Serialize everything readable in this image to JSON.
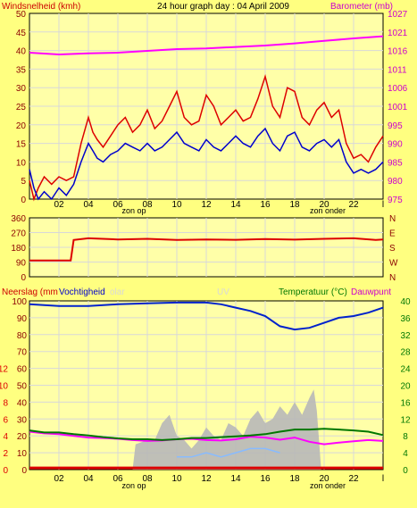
{
  "title": "24 hour graph day : 04 April 2009",
  "colors": {
    "background": "#ffff80",
    "plot_bg": "#ffffa8",
    "grid": "#d8d8d8",
    "wind_gust": "#dd0000",
    "wind_avg": "#0000cc",
    "barometer": "#ff00ff",
    "direction": "#dd0000",
    "humidity": "#0022cc",
    "temperature": "#007700",
    "dewpoint": "#ff00ff",
    "rain": "#dd0000",
    "solar": "#b8b8b8",
    "uv": "#88bbff",
    "dark_red": "#8b0000",
    "green_axis": "#007700",
    "magenta_axis": "#cc00cc",
    "solar_label": "#d8d8d8"
  },
  "x_axis": {
    "ticks": [
      "02",
      "04",
      "06",
      "08",
      "10",
      "12",
      "14",
      "16",
      "18",
      "20",
      "22",
      "l"
    ],
    "sunrise_label": "zon op",
    "sunset_label": "zon onder"
  },
  "panels": {
    "wind": {
      "left_label": "Windsnelheid (kmh)",
      "right_label": "Barometer (mb)",
      "left_ticks": [
        "0",
        "5",
        "10",
        "15",
        "20",
        "25",
        "30",
        "35",
        "40",
        "45",
        "50"
      ],
      "right_ticks": [
        "975",
        "980",
        "985",
        "990",
        "995",
        "1001",
        "1006",
        "1011",
        "1016",
        "1021",
        "1027"
      ]
    },
    "direction": {
      "left_ticks": [
        "0",
        "90",
        "180",
        "270",
        "360"
      ],
      "right_ticks": [
        "N",
        "W",
        "S",
        "E",
        "N"
      ]
    },
    "climate": {
      "label_rain": "Neerslag (mm",
      "label_humidity": "Vochtigheid",
      "label_solar": "olar",
      "label_uv": "UV",
      "label_temperature": "Temperatuur (°C)",
      "label_dewpoint": "Dauwpunt",
      "rain_ticks": [
        "0",
        "2",
        "4",
        "6",
        "8",
        "10",
        "12"
      ],
      "humidity_ticks": [
        "0",
        "10",
        "20",
        "30",
        "40",
        "50",
        "60",
        "70",
        "80",
        "90",
        "100"
      ],
      "right_ticks": [
        "0",
        "4",
        "8",
        "12",
        "16",
        "20",
        "24",
        "28",
        "32",
        "36",
        "40"
      ]
    }
  },
  "chart_data": [
    {
      "type": "line",
      "x_unit": "hour",
      "x_range": [
        0,
        24
      ],
      "ylim": [
        0,
        50
      ],
      "y2lim": [
        975,
        1027
      ],
      "series": [
        {
          "name": "Windsnelheid (kmh)",
          "points": [
            [
              0,
              8
            ],
            [
              0.3,
              3
            ],
            [
              0.6,
              0
            ],
            [
              1,
              2
            ],
            [
              1.5,
              0
            ],
            [
              2,
              3
            ],
            [
              2.5,
              1
            ],
            [
              3,
              4
            ],
            [
              3.5,
              10
            ],
            [
              4,
              15
            ],
            [
              4.3,
              13
            ],
            [
              4.6,
              11
            ],
            [
              5,
              10
            ],
            [
              5.5,
              12
            ],
            [
              6,
              13
            ],
            [
              6.5,
              15
            ],
            [
              7,
              14
            ],
            [
              7.5,
              13
            ],
            [
              8,
              15
            ],
            [
              8.5,
              13
            ],
            [
              9,
              14
            ],
            [
              9.5,
              16
            ],
            [
              10,
              18
            ],
            [
              10.5,
              15
            ],
            [
              11,
              14
            ],
            [
              11.5,
              13
            ],
            [
              12,
              16
            ],
            [
              12.5,
              14
            ],
            [
              13,
              13
            ],
            [
              13.5,
              15
            ],
            [
              14,
              17
            ],
            [
              14.5,
              15
            ],
            [
              15,
              14
            ],
            [
              15.5,
              17
            ],
            [
              16,
              19
            ],
            [
              16.5,
              15
            ],
            [
              17,
              13
            ],
            [
              17.5,
              17
            ],
            [
              18,
              18
            ],
            [
              18.5,
              14
            ],
            [
              19,
              13
            ],
            [
              19.5,
              15
            ],
            [
              20,
              16
            ],
            [
              20.5,
              14
            ],
            [
              21,
              16
            ],
            [
              21.5,
              10
            ],
            [
              22,
              7
            ],
            [
              22.5,
              8
            ],
            [
              23,
              7
            ],
            [
              23.5,
              8
            ],
            [
              24,
              10
            ]
          ]
        },
        {
          "name": "Gust",
          "points": [
            [
              0,
              5
            ],
            [
              0.3,
              0
            ],
            [
              0.6,
              3
            ],
            [
              1,
              6
            ],
            [
              1.5,
              4
            ],
            [
              2,
              6
            ],
            [
              2.5,
              5
            ],
            [
              3,
              6
            ],
            [
              3.5,
              15
            ],
            [
              4,
              22
            ],
            [
              4.3,
              18
            ],
            [
              4.6,
              16
            ],
            [
              5,
              14
            ],
            [
              5.5,
              17
            ],
            [
              6,
              20
            ],
            [
              6.5,
              22
            ],
            [
              7,
              18
            ],
            [
              7.5,
              20
            ],
            [
              8,
              24
            ],
            [
              8.5,
              19
            ],
            [
              9,
              21
            ],
            [
              9.5,
              25
            ],
            [
              10,
              29
            ],
            [
              10.5,
              22
            ],
            [
              11,
              20
            ],
            [
              11.5,
              21
            ],
            [
              12,
              28
            ],
            [
              12.5,
              25
            ],
            [
              13,
              20
            ],
            [
              13.5,
              22
            ],
            [
              14,
              24
            ],
            [
              14.5,
              21
            ],
            [
              15,
              22
            ],
            [
              15.5,
              27
            ],
            [
              16,
              33
            ],
            [
              16.5,
              25
            ],
            [
              17,
              22
            ],
            [
              17.5,
              30
            ],
            [
              18,
              29
            ],
            [
              18.5,
              22
            ],
            [
              19,
              20
            ],
            [
              19.5,
              24
            ],
            [
              20,
              26
            ],
            [
              20.5,
              22
            ],
            [
              21,
              24
            ],
            [
              21.5,
              15
            ],
            [
              22,
              11
            ],
            [
              22.5,
              12
            ],
            [
              23,
              10
            ],
            [
              23.5,
              14
            ],
            [
              24,
              17
            ]
          ]
        },
        {
          "name": "Barometer (mb)",
          "axis": "right",
          "points": [
            [
              0,
              1016
            ],
            [
              2,
              1015.5
            ],
            [
              4,
              1015.8
            ],
            [
              6,
              1016
            ],
            [
              8,
              1016.5
            ],
            [
              10,
              1017
            ],
            [
              12,
              1017.2
            ],
            [
              14,
              1017.6
            ],
            [
              16,
              1018
            ],
            [
              18,
              1018.6
            ],
            [
              20,
              1019.3
            ],
            [
              22,
              1020
            ],
            [
              24,
              1020.6
            ]
          ]
        }
      ]
    },
    {
      "type": "line",
      "x_unit": "hour",
      "x_range": [
        0,
        24
      ],
      "ylim": [
        0,
        360
      ],
      "series": [
        {
          "name": "Wind direction",
          "points": [
            [
              0,
              100
            ],
            [
              2.8,
              100
            ],
            [
              3,
              225
            ],
            [
              4,
              235
            ],
            [
              6,
              228
            ],
            [
              8,
              232
            ],
            [
              10,
              225
            ],
            [
              12,
              228
            ],
            [
              14,
              226
            ],
            [
              16,
              230
            ],
            [
              18,
              227
            ],
            [
              20,
              232
            ],
            [
              22,
              235
            ],
            [
              23.5,
              225
            ],
            [
              24,
              228
            ]
          ]
        }
      ]
    },
    {
      "type": "line",
      "x_unit": "hour",
      "x_range": [
        0,
        24
      ],
      "ylim": [
        0,
        100
      ],
      "y2lim": [
        0,
        40
      ],
      "series": [
        {
          "name": "Vochtigheid",
          "points": [
            [
              0,
              98
            ],
            [
              2,
              97
            ],
            [
              4,
              97
            ],
            [
              6,
              98
            ],
            [
              8,
              98.5
            ],
            [
              10,
              99
            ],
            [
              12,
              99
            ],
            [
              13,
              98
            ],
            [
              14,
              96
            ],
            [
              15,
              94
            ],
            [
              16,
              91
            ],
            [
              17,
              85
            ],
            [
              18,
              83
            ],
            [
              19,
              84
            ],
            [
              20,
              87
            ],
            [
              21,
              90
            ],
            [
              22,
              91
            ],
            [
              23,
              93
            ],
            [
              24,
              96
            ]
          ]
        },
        {
          "name": "Temperatuur (°C)",
          "axis": "right",
          "points": [
            [
              0,
              9.3
            ],
            [
              1,
              8.8
            ],
            [
              2,
              8.8
            ],
            [
              3,
              8.4
            ],
            [
              4,
              8.1
            ],
            [
              5,
              7.7
            ],
            [
              6,
              7.4
            ],
            [
              7,
              7.2
            ],
            [
              8,
              7.2
            ],
            [
              9,
              7.0
            ],
            [
              10,
              7.2
            ],
            [
              11,
              7.5
            ],
            [
              12,
              7.5
            ],
            [
              13,
              7.7
            ],
            [
              14,
              7.9
            ],
            [
              15,
              8.1
            ],
            [
              16,
              8.4
            ],
            [
              17,
              9.0
            ],
            [
              18,
              9.5
            ],
            [
              19,
              9.5
            ],
            [
              20,
              9.7
            ],
            [
              21,
              9.5
            ],
            [
              22,
              9.3
            ],
            [
              23,
              9.0
            ],
            [
              24,
              8.2
            ]
          ]
        },
        {
          "name": "Dauwpunt",
          "axis": "right",
          "points": [
            [
              0,
              9.0
            ],
            [
              1,
              8.6
            ],
            [
              2,
              8.4
            ],
            [
              3,
              8.0
            ],
            [
              4,
              7.6
            ],
            [
              5,
              7.5
            ],
            [
              6,
              7.3
            ],
            [
              7,
              7.0
            ],
            [
              8,
              6.8
            ],
            [
              9,
              6.9
            ],
            [
              10,
              7.2
            ],
            [
              11,
              7.3
            ],
            [
              12,
              7.0
            ],
            [
              13,
              6.9
            ],
            [
              14,
              7.2
            ],
            [
              15,
              7.8
            ],
            [
              16,
              7.6
            ],
            [
              17,
              7.1
            ],
            [
              18,
              7.6
            ],
            [
              19,
              6.6
            ],
            [
              20,
              6.0
            ],
            [
              21,
              6.4
            ],
            [
              22,
              6.7
            ],
            [
              23,
              7.0
            ],
            [
              24,
              6.8
            ]
          ]
        },
        {
          "name": "Neerslag (mm",
          "axis": "rain",
          "points": [
            [
              0,
              0.2
            ],
            [
              24,
              0.2
            ]
          ]
        },
        {
          "name": "olar",
          "type": "area",
          "axis": "right",
          "points": [
            [
              7,
              0
            ],
            [
              7.2,
              6
            ],
            [
              8,
              7
            ],
            [
              8.5,
              7
            ],
            [
              9,
              11
            ],
            [
              9.5,
              13
            ],
            [
              10,
              8
            ],
            [
              10.5,
              7
            ],
            [
              11,
              5
            ],
            [
              11.5,
              7
            ],
            [
              12,
              10
            ],
            [
              12.5,
              8
            ],
            [
              13,
              7
            ],
            [
              13.5,
              11
            ],
            [
              14,
              10
            ],
            [
              14.5,
              8
            ],
            [
              15,
              12
            ],
            [
              15.5,
              14
            ],
            [
              16,
              11
            ],
            [
              16.5,
              12
            ],
            [
              17,
              15
            ],
            [
              17.5,
              13
            ],
            [
              18,
              16
            ],
            [
              18.5,
              13
            ],
            [
              19,
              17
            ],
            [
              19.3,
              19
            ],
            [
              19.5,
              14
            ],
            [
              19.8,
              0
            ]
          ]
        },
        {
          "name": "UV",
          "axis": "right",
          "points": [
            [
              10,
              3
            ],
            [
              11,
              3
            ],
            [
              12,
              4
            ],
            [
              13,
              3
            ],
            [
              14,
              4
            ],
            [
              15,
              5
            ],
            [
              16,
              5
            ],
            [
              17,
              4
            ]
          ]
        }
      ]
    }
  ]
}
